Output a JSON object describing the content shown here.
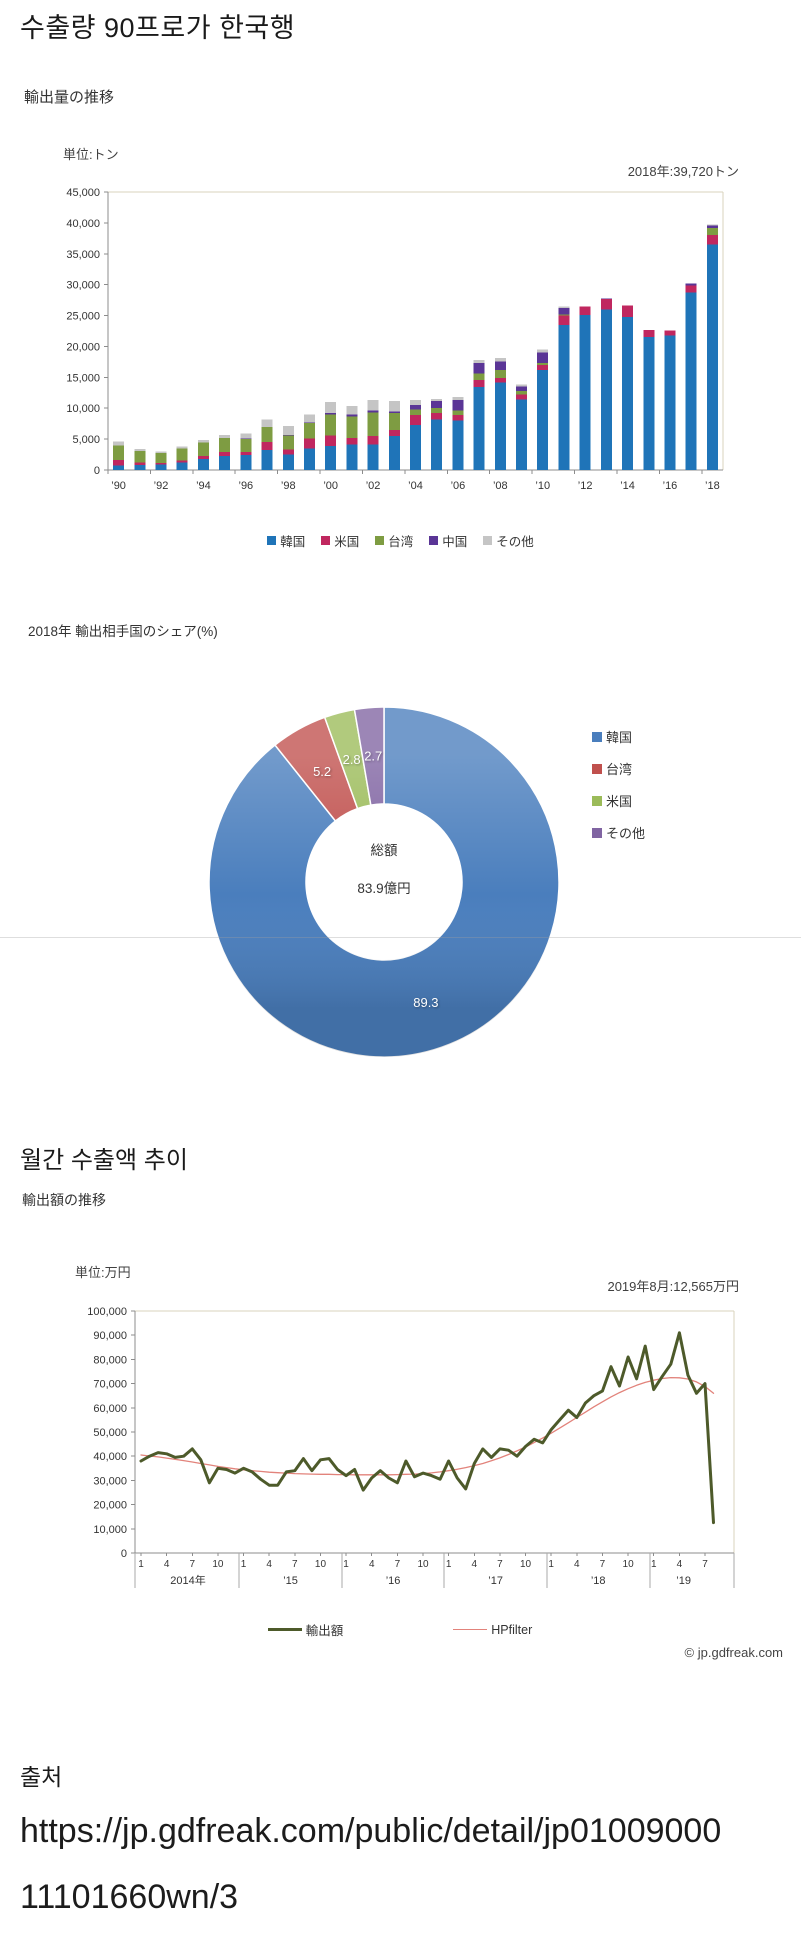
{
  "page": {
    "title_ko": "수출량 90프로가 한국행"
  },
  "copyright": "© jp.gdfreak.com",
  "source": {
    "label": "출처",
    "url_line1": "https://jp.gdfreak.com/public/detail/jp01009000",
    "url_line2": "11101660wn/3"
  },
  "chart_data": [
    {
      "type": "bar",
      "stacked": true,
      "title": "輸出量の推移",
      "unit_label": "単位:トン",
      "annotation": "2018年:39,720トン",
      "ylabel": "トン",
      "ylim": [
        0,
        45000
      ],
      "ytick_step": 5000,
      "grid": false,
      "legend_position": "bottom",
      "categories": [
        1990,
        1991,
        1992,
        1993,
        1994,
        1995,
        1996,
        1997,
        1998,
        1999,
        2000,
        2001,
        2002,
        2003,
        2004,
        2005,
        2006,
        2007,
        2008,
        2009,
        2010,
        2011,
        2012,
        2013,
        2014,
        2015,
        2016,
        2017,
        2018
      ],
      "x_tick_labels": [
        "’90",
        "’92",
        "’94",
        "’96",
        "’98",
        "’00",
        "’02",
        "’04",
        "’06",
        "’08",
        "’10",
        "’12",
        "’14",
        "’16",
        "’18"
      ],
      "series": [
        {
          "name": "韓国",
          "color": "#1F74B8",
          "values": [
            700,
            800,
            900,
            1200,
            1800,
            2300,
            2400,
            3200,
            2500,
            3500,
            3900,
            4100,
            4100,
            5500,
            7300,
            8200,
            8000,
            13400,
            14200,
            11400,
            16200,
            23500,
            25100,
            26000,
            24800,
            21500,
            21800,
            28700,
            36500
          ]
        },
        {
          "name": "米国",
          "color": "#C0275F",
          "values": [
            900,
            400,
            250,
            300,
            450,
            600,
            500,
            1300,
            800,
            1600,
            1700,
            1100,
            1400,
            1000,
            1600,
            1000,
            900,
            1200,
            700,
            800,
            800,
            1500,
            1400,
            1700,
            1800,
            1200,
            800,
            1200,
            1500
          ]
        },
        {
          "name": "台湾",
          "color": "#7E9C42",
          "values": [
            2400,
            1900,
            1600,
            2000,
            2200,
            2300,
            2100,
            2500,
            2300,
            2500,
            3400,
            3500,
            3800,
            2700,
            900,
            800,
            700,
            1000,
            1300,
            600,
            300,
            200,
            0,
            0,
            0,
            0,
            0,
            0,
            1200
          ]
        },
        {
          "name": "中国",
          "color": "#5A3596",
          "values": [
            0,
            0,
            0,
            0,
            0,
            0,
            100,
            0,
            100,
            100,
            200,
            300,
            300,
            300,
            700,
            1200,
            1700,
            1700,
            1400,
            700,
            1700,
            1000,
            0,
            100,
            0,
            0,
            0,
            300,
            350
          ]
        },
        {
          "name": "その他",
          "color": "#C5C5C5",
          "values": [
            600,
            300,
            250,
            300,
            400,
            500,
            800,
            1200,
            1400,
            1300,
            1800,
            1400,
            1700,
            1700,
            800,
            300,
            500,
            500,
            500,
            300,
            500,
            300,
            0,
            0,
            0,
            0,
            0,
            0,
            170
          ]
        }
      ]
    },
    {
      "type": "pie",
      "donut": true,
      "title": "2018年 輸出相手国のシェア(%)",
      "center_line1": "総額",
      "center_line2": "83.9億円",
      "slices": [
        {
          "name": "韓国",
          "value": 89.3,
          "label": "89.3",
          "color": "#4A7EBD"
        },
        {
          "name": "台湾",
          "value": 5.2,
          "label": "5.2",
          "color": "#C0504D"
        },
        {
          "name": "米国",
          "value": 2.8,
          "label": "2.8",
          "color": "#9BBB59"
        },
        {
          "name": "その他",
          "value": 2.7,
          "label": "2.7",
          "color": "#8064A2"
        }
      ],
      "legend_position": "right"
    },
    {
      "type": "line",
      "title_ko": "월간 수출액 추이",
      "title": "輸出額の推移",
      "unit_label": "単位:万円",
      "annotation": "2019年8月:12,565万円",
      "ylim": [
        0,
        100000
      ],
      "ytick_step": 10000,
      "x_start": "2014-01",
      "x_end": "2019-08",
      "year_labels": [
        "2014年",
        "’15",
        "’16",
        "’17",
        "’18",
        "’19"
      ],
      "month_tick_positions": [
        0,
        3,
        6,
        9
      ],
      "month_tick_labels": [
        "1",
        "4",
        "7",
        "10"
      ],
      "series": [
        {
          "name": "輸出額",
          "color": "#4D5A2A",
          "width": 3,
          "values": [
            38000,
            40000,
            41500,
            41000,
            39500,
            40000,
            43000,
            38500,
            29000,
            35000,
            34500,
            33000,
            35000,
            33500,
            30500,
            28000,
            28000,
            33500,
            34000,
            39000,
            34000,
            38500,
            39000,
            34500,
            32000,
            34500,
            26000,
            31000,
            34000,
            31000,
            29000,
            38000,
            31500,
            33000,
            32000,
            30500,
            38000,
            31000,
            26500,
            37000,
            43000,
            39500,
            43000,
            42500,
            40000,
            44000,
            47000,
            45500,
            51000,
            55000,
            59000,
            56000,
            62000,
            65000,
            67000,
            77000,
            69000,
            81000,
            72000,
            85500,
            67500,
            73000,
            78000,
            91000,
            73500,
            66000,
            70000,
            12565
          ]
        },
        {
          "name": "HPfilter",
          "color": "#E2837B",
          "width": 1.3,
          "values": [
            40500,
            40100,
            39700,
            39200,
            38700,
            38200,
            37600,
            37000,
            36400,
            35800,
            35300,
            34800,
            34400,
            34000,
            33700,
            33400,
            33200,
            33000,
            32800,
            32700,
            32600,
            32500,
            32500,
            32400,
            32400,
            32300,
            32300,
            32300,
            32300,
            32300,
            32400,
            32500,
            32600,
            32800,
            33100,
            33500,
            34000,
            34600,
            35300,
            36100,
            37000,
            38100,
            39300,
            40700,
            42200,
            43800,
            45600,
            47500,
            49500,
            51600,
            53800,
            56000,
            58200,
            60400,
            62500,
            64500,
            66300,
            67900,
            69300,
            70500,
            71400,
            72100,
            72500,
            72400,
            71900,
            70700,
            68800,
            66000
          ]
        }
      ]
    }
  ]
}
